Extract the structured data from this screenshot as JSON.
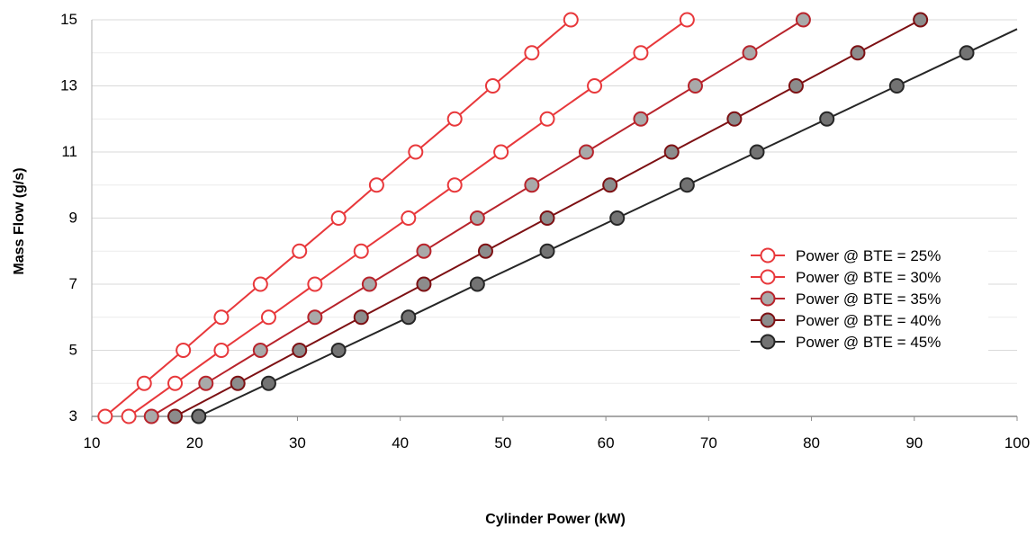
{
  "chart_data": {
    "type": "line",
    "xlabel": "Cylinder Power (kW)",
    "ylabel": "Mass Flow (g/s)",
    "xlim": [
      10,
      100
    ],
    "ylim": [
      3,
      15
    ],
    "xticks": [
      "10",
      "20",
      "30",
      "40",
      "50",
      "60",
      "70",
      "80",
      "90",
      "100"
    ],
    "yticks": [
      "3",
      "5",
      "7",
      "9",
      "11",
      "13",
      "15"
    ],
    "grid": "horizontal",
    "legend_position": "right",
    "y": [
      3,
      4,
      5,
      6,
      7,
      8,
      9,
      10,
      11,
      12,
      13,
      14,
      15
    ],
    "series": [
      {
        "name": "Power @ BTE = 25%",
        "color": "#e8383b",
        "marker_fill": "#ffffff",
        "x": [
          11.3,
          15.1,
          18.9,
          22.6,
          26.4,
          30.2,
          34.0,
          37.7,
          41.5,
          45.3,
          49.0,
          52.8,
          56.6
        ]
      },
      {
        "name": "Power @ BTE = 30%",
        "color": "#e8383b",
        "marker_fill": "#ffffff",
        "x": [
          13.6,
          18.1,
          22.6,
          27.2,
          31.7,
          36.2,
          40.8,
          45.3,
          49.8,
          54.3,
          58.9,
          63.4,
          67.9
        ]
      },
      {
        "name": "Power @ BTE = 35%",
        "color": "#b8232b",
        "marker_fill": "#a9a9a9",
        "x": [
          15.8,
          21.1,
          26.4,
          31.7,
          37.0,
          42.3,
          47.5,
          52.8,
          58.1,
          63.4,
          68.7,
          74.0,
          79.2
        ]
      },
      {
        "name": "Power @ BTE = 40%",
        "color": "#7d1013",
        "marker_fill": "#8c8c8c",
        "x": [
          18.1,
          24.2,
          30.2,
          36.2,
          42.3,
          48.3,
          54.3,
          60.4,
          66.4,
          72.5,
          78.5,
          84.5,
          90.6
        ]
      },
      {
        "name": "Power @ BTE = 45%",
        "color": "#262626",
        "marker_fill": "#737373",
        "x": [
          20.4,
          27.2,
          34.0,
          40.8,
          47.5,
          54.3,
          61.1,
          67.9,
          74.7,
          81.5,
          88.3,
          95.1,
          null
        ]
      }
    ]
  }
}
